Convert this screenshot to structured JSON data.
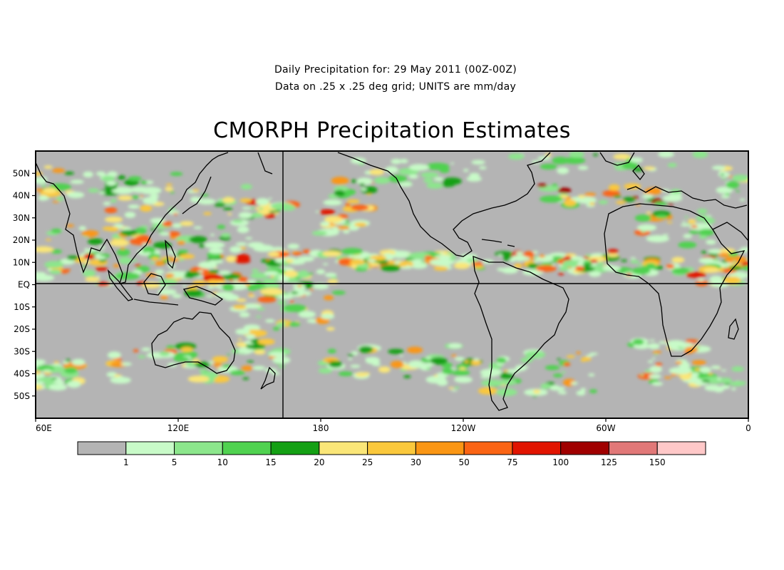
{
  "header": {
    "line1": "Daily Precipitation for: 29 May 2011 (00Z-00Z)",
    "line2": "Data on .25 x .25 deg grid; UNITS are mm/day",
    "title": "CMORPH Precipitation Estimates"
  },
  "map": {
    "lon_range": [
      60,
      360
    ],
    "lat_range": [
      -60,
      60
    ],
    "lat_labels": [
      "50N",
      "40N",
      "30N",
      "20N",
      "10N",
      "EQ",
      "10S",
      "20S",
      "30S",
      "40S",
      "50S"
    ],
    "lon_labels": [
      "60E",
      "120E",
      "180",
      "120W",
      "60W",
      "0"
    ],
    "background_color": "#b4b4b4",
    "reference_lines": [
      "EQ",
      "180"
    ]
  },
  "colorbar": {
    "labels": [
      "1",
      "5",
      "10",
      "15",
      "20",
      "25",
      "30",
      "50",
      "75",
      "100",
      "125",
      "150"
    ],
    "colors": [
      "#b4b4b4",
      "#c8fac8",
      "#8ce68c",
      "#50d250",
      "#14a014",
      "#fae678",
      "#fac83c",
      "#fa9614",
      "#fa6414",
      "#e11400",
      "#a00000",
      "#e17878",
      "#ffc8c8"
    ]
  }
}
